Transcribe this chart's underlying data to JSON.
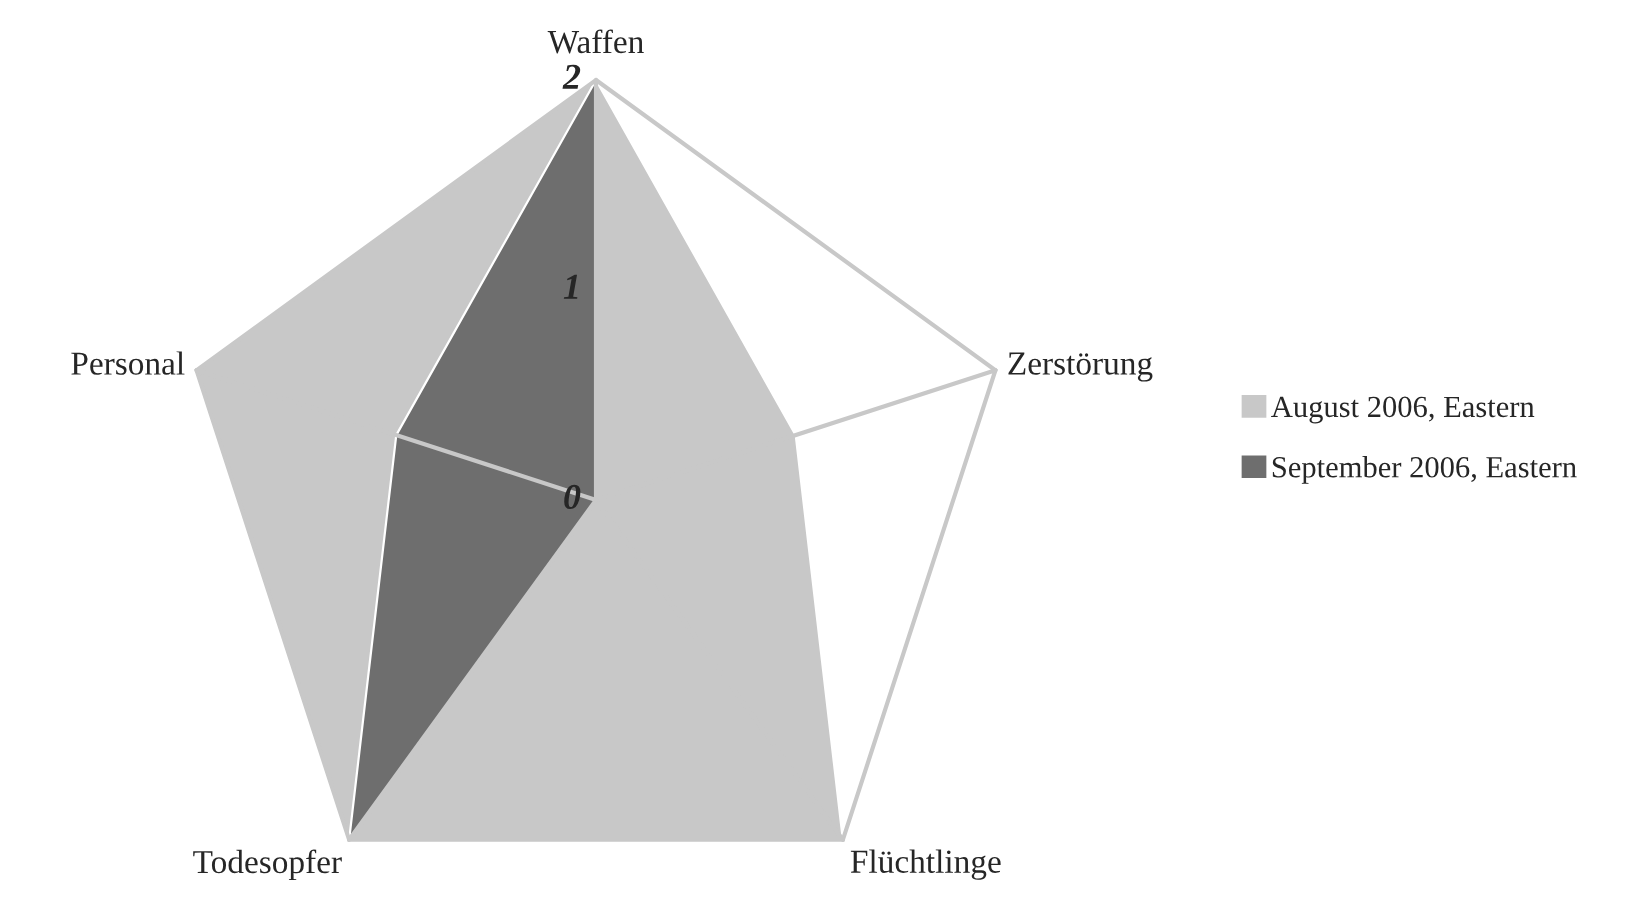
{
  "chart_data": {
    "type": "radar",
    "categories": [
      "Waffen",
      "Zerstörung",
      "Flüchtlinge",
      "Todesopfer",
      "Personal"
    ],
    "series": [
      {
        "name": "August 2006, Eastern",
        "color": "#c8c8c8",
        "values": [
          2,
          1,
          2,
          2,
          2
        ]
      },
      {
        "name": "September 2006, Eastern",
        "color": "#6e6e6e",
        "values": [
          2,
          0,
          0,
          2,
          1
        ]
      }
    ],
    "ylim": [
      0,
      2
    ],
    "yticks": [
      0,
      1,
      2
    ],
    "grid": true,
    "legend": "right"
  }
}
